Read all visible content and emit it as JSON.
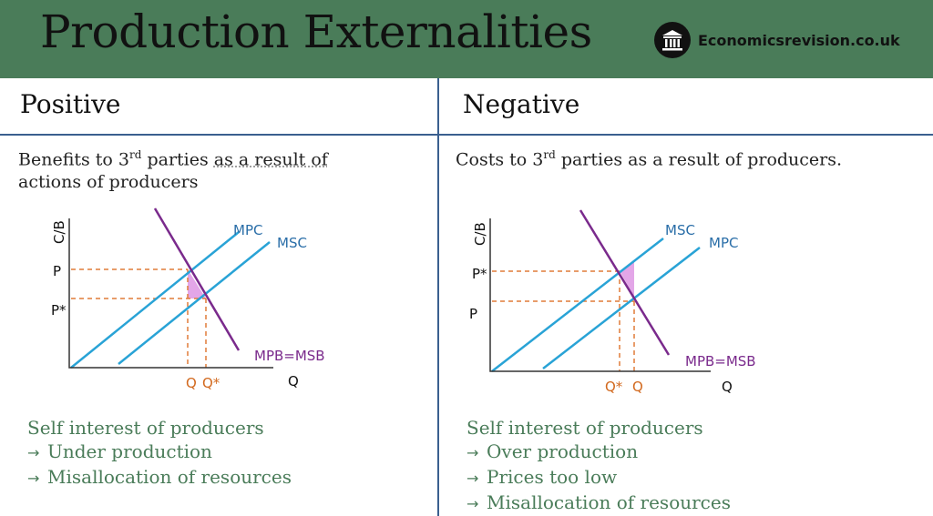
{
  "header": {
    "title": "Production Externalities",
    "brand": "Economicsrevision.co.uk",
    "logo_icon": "classical-building-icon"
  },
  "colors": {
    "header_bg": "#4a7c59",
    "divider": "#3a5f8f",
    "supply_lines": "#29a3d6",
    "demand_line": "#7a2a8c",
    "guides": "#e07b39",
    "welfare_loss": "#e3a6e8",
    "conclusion_text": "#4a7c59"
  },
  "positive": {
    "heading": "Positive",
    "desc_before": "Benefits to 3",
    "desc_sup": "rd",
    "desc_mid": " parties ",
    "desc_dotted": "as a result of",
    "desc_line2": "actions of producers",
    "diagram": {
      "y_axis": "C/B",
      "x_axis": "Q",
      "price_high": "P",
      "price_low": "P*",
      "qty_left": "Q",
      "qty_right": "Q*",
      "curve_upper": "MPC",
      "curve_lower": "MSC",
      "demand": "MPB=MSB"
    },
    "conclusion_heading": "Self interest of producers",
    "conclusions": [
      "Under production",
      "Misallocation of resources"
    ]
  },
  "negative": {
    "heading": "Negative",
    "desc_before": "Costs to 3",
    "desc_sup": "rd",
    "desc_after": " parties as a result of producers.",
    "diagram": {
      "y_axis": "C/B",
      "x_axis": "Q",
      "price_high": "P*",
      "price_low": "P",
      "qty_left": "Q*",
      "qty_right": "Q",
      "curve_upper": "MSC",
      "curve_lower": "MPC",
      "demand": "MPB=MSB"
    },
    "conclusion_heading": "Self interest of producers",
    "conclusions": [
      "Over production",
      "Prices too low",
      "Misallocation of resources"
    ]
  }
}
